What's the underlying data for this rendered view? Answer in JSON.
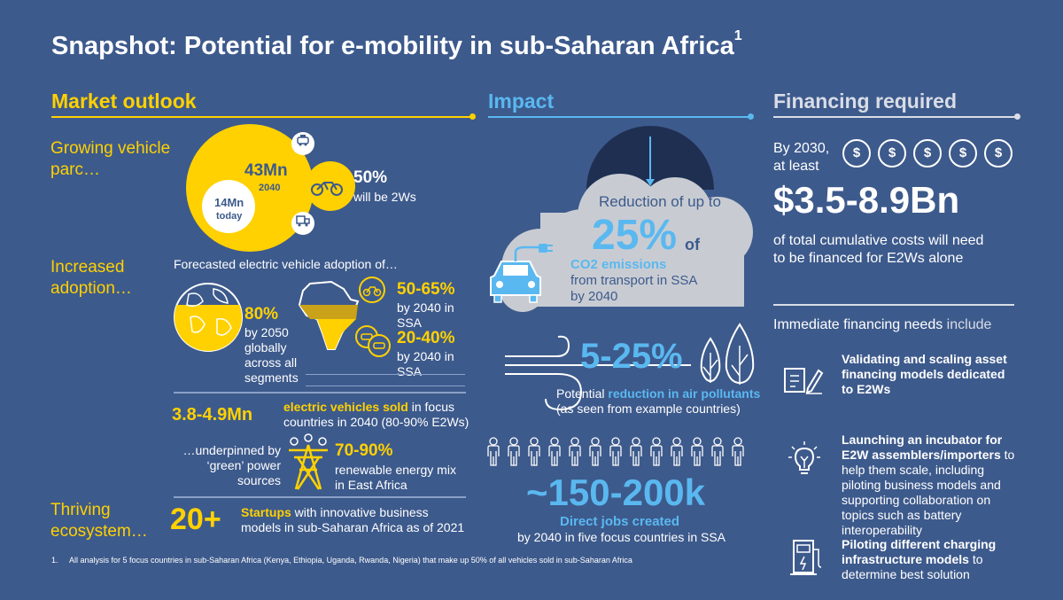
{
  "title": "Snapshot: Potential for e-mobility in sub-Saharan Africa",
  "title_sup": "1",
  "colors": {
    "background": "#3d5a8c",
    "yellow": "#ffd100",
    "blue": "#5ab8f0",
    "grey": "#c8ccd2"
  },
  "market": {
    "header": "Market outlook",
    "growing": {
      "label": "Growing vehicle parc…",
      "big_value": "43Mn",
      "big_year": "2040",
      "small_value": "14Mn",
      "small_label": "today",
      "share": "50%",
      "share_label": "will be 2Ws"
    },
    "adoption": {
      "label": "Increased adoption…",
      "intro": "Forecasted electric vehicle adoption of…",
      "global_value": "80%",
      "global_text": "by 2050 globally across all segments",
      "ssa_2w_value": "50-65%",
      "ssa_2w_text": "by 2040 in SSA",
      "ssa_other_value": "20-40%",
      "ssa_other_text": "by 2040 in SSA"
    },
    "sold": {
      "value": "3.8-4.9Mn",
      "highlight": "electric vehicles sold",
      "text": " in focus countries in 2040 (80-90% E2Ws)"
    },
    "green": {
      "label": "…underpinned by ‘green’ power sources",
      "value": "70-90%",
      "text": "renewable energy mix in East Africa"
    },
    "ecosystem": {
      "label": "Thriving ecosystem…",
      "value": "20+",
      "highlight": "Startups",
      "text": " with innovative business models in sub-Saharan Africa as of 2021"
    }
  },
  "impact": {
    "header": "Impact",
    "co2": {
      "line1": "Reduction of up to",
      "value": "25%",
      "of": "of",
      "highlight": "CO2 emissions",
      "line3": "from transport in SSA",
      "line4": "by 2040"
    },
    "air": {
      "value": "5-25%",
      "pre": "Potential ",
      "highlight": "reduction in air pollutants",
      "line2": "(as seen from example countries)"
    },
    "jobs": {
      "value": "~150-200k",
      "highlight": "Direct jobs created",
      "text": "by 2040 in five focus countries in SSA",
      "people_count": 13
    }
  },
  "financing": {
    "header": "Financing required",
    "by": "By 2030,",
    "at_least": "at least",
    "dollar": "$",
    "coins": 5,
    "value": "$3.5-8.9Bn",
    "text1": "of total cumulative costs will need",
    "text2": "to be financed for E2Ws alone",
    "immediate_bold": "Immediate financing needs",
    "immediate_rest": " include",
    "items": [
      {
        "bold": "Validating and scaling asset financing models dedicated to E2Ws",
        "rest": ""
      },
      {
        "bold": "Launching an incubator for E2W assemblers/importers",
        "rest": " to help them scale, including piloting business models and supporting collaboration on topics such as battery interoperability"
      },
      {
        "bold": "Piloting different charging infrastructure models",
        "rest": " to determine best solution"
      }
    ]
  },
  "footnote": {
    "number": "1.",
    "text": "All analysis for 5 focus countries in sub-Saharan Africa (Kenya, Ethiopia, Uganda, Rwanda, Nigeria) that make up 50% of all vehicles sold in sub-Saharan Africa"
  }
}
